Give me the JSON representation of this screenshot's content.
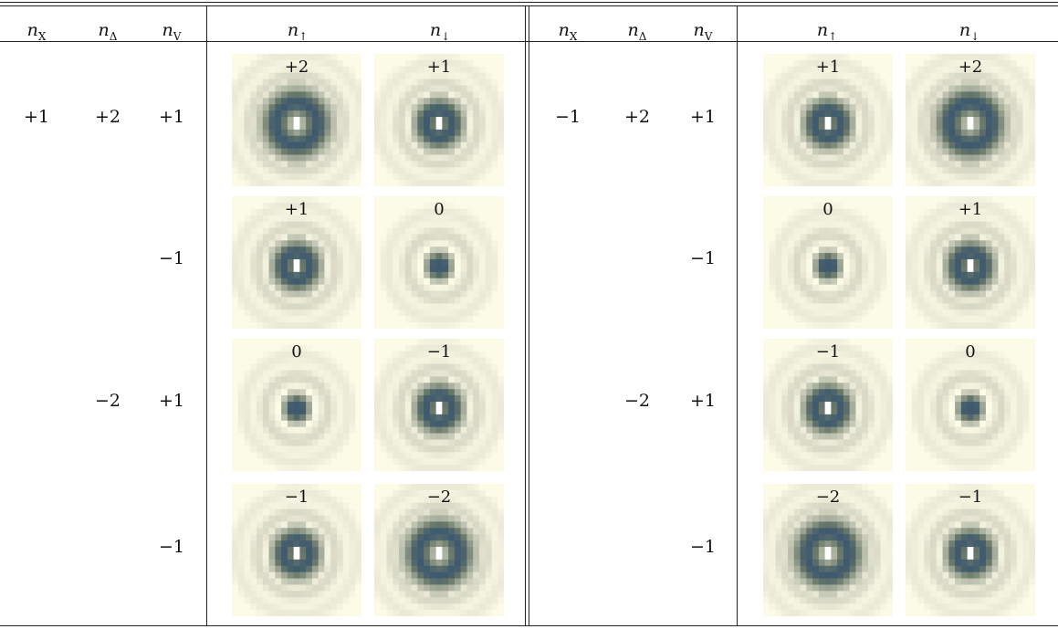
{
  "headers": {
    "nX": "n",
    "nX_sub": "X",
    "nD": "n",
    "nD_sub": "Δ",
    "nV": "n",
    "nV_sub": "V",
    "nUp": "n",
    "nUp_sub": "↑",
    "nDn": "n",
    "nDn_sub": "↓"
  },
  "left": {
    "nX": "+1",
    "rows": [
      {
        "nDelta": "+2",
        "nV": "+1",
        "up": "+2",
        "down": "+1",
        "up_size": 2,
        "down_size": 1
      },
      {
        "nDelta": "",
        "nV": "−1",
        "up": "+1",
        "down": "0",
        "up_size": 1,
        "down_size": 0
      },
      {
        "nDelta": "−2",
        "nV": "+1",
        "up": "0",
        "down": "−1",
        "up_size": 0,
        "down_size": 1
      },
      {
        "nDelta": "",
        "nV": "−1",
        "up": "−1",
        "down": "−2",
        "up_size": 1,
        "down_size": 2
      }
    ]
  },
  "right": {
    "nX": "−1",
    "rows": [
      {
        "nDelta": "+2",
        "nV": "+1",
        "up": "+1",
        "down": "+2",
        "up_size": 1,
        "down_size": 2
      },
      {
        "nDelta": "",
        "nV": "−1",
        "up": "0",
        "down": "+1",
        "up_size": 0,
        "down_size": 1
      },
      {
        "nDelta": "−2",
        "nV": "+1",
        "up": "−1",
        "down": "0",
        "up_size": 1,
        "down_size": 0
      },
      {
        "nDelta": "",
        "nV": "−1",
        "up": "−2",
        "down": "−1",
        "up_size": 2,
        "down_size": 1
      }
    ]
  },
  "colors": {
    "background": "#fbfbe6",
    "ring_dark": "#3f5a6e",
    "ring_mid": "#6b7a6a",
    "ring_light": "#d6d6c4"
  }
}
